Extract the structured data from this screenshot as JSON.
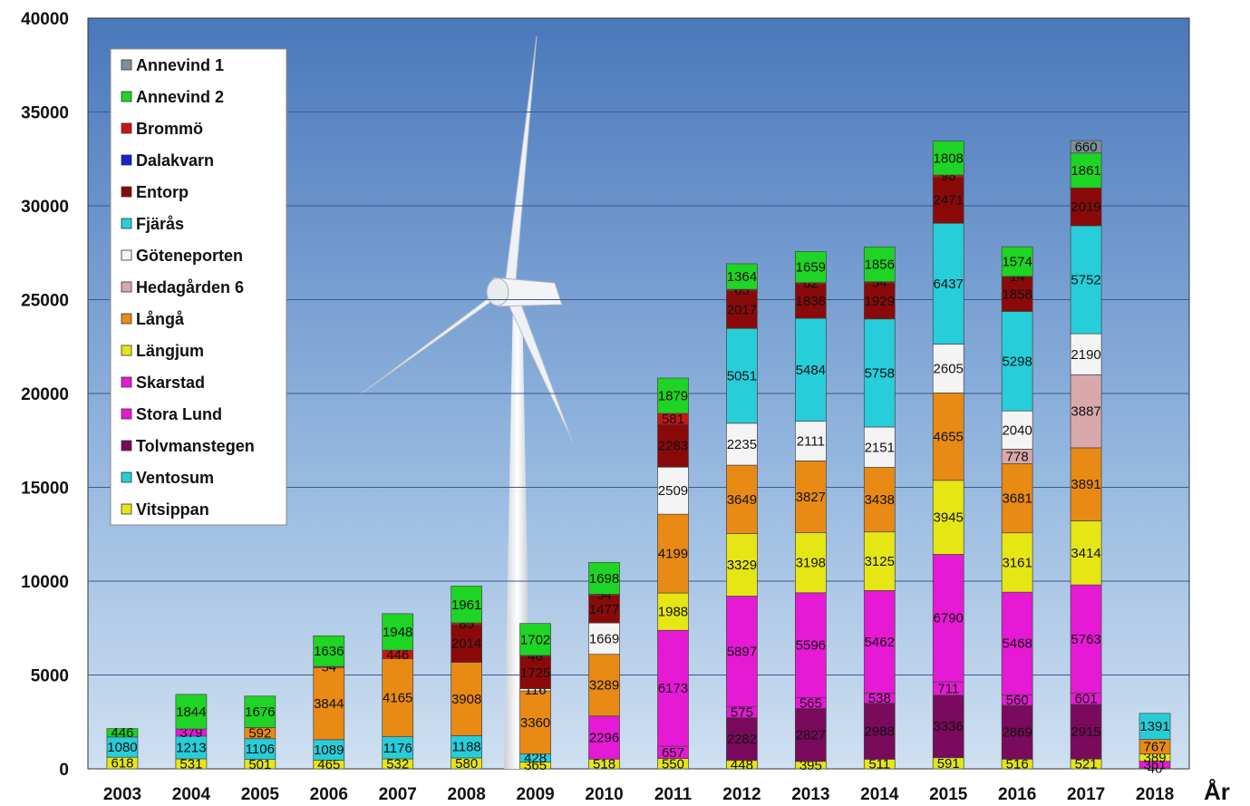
{
  "chart_data": {
    "type": "bar",
    "stacked": true,
    "xlabel": "År",
    "ylim": [
      0,
      40000
    ],
    "yticks": [
      0,
      5000,
      10000,
      15000,
      20000,
      25000,
      30000,
      35000,
      40000
    ],
    "grid": true,
    "legend_position": "top-left",
    "categories": [
      "2003",
      "2004",
      "2005",
      "2006",
      "2007",
      "2008",
      "2009",
      "2010",
      "2011",
      "2012",
      "2013",
      "2014",
      "2015",
      "2016",
      "2017",
      "2018"
    ],
    "series": [
      {
        "name": "Vitsippan",
        "color": "#e6e614",
        "values": [
          618,
          531,
          501,
          465,
          532,
          580,
          365,
          518,
          550,
          448,
          395,
          511,
          591,
          516,
          521,
          46
        ]
      },
      {
        "name": "Ventosum",
        "color": "#27cdd9",
        "values": [
          1080,
          1213,
          1106,
          1089,
          1176,
          1188,
          428,
          0,
          0,
          0,
          0,
          0,
          0,
          0,
          0,
          0
        ]
      },
      {
        "name": "Tolvmanstegen",
        "color": "#7a0a5c",
        "values": [
          0,
          0,
          0,
          0,
          0,
          0,
          0,
          0,
          0,
          2282,
          2827,
          2988,
          3336,
          2869,
          2915,
          0
        ]
      },
      {
        "name": "Stora Lund",
        "color": "#e619d4",
        "values": [
          0,
          379,
          0,
          0,
          0,
          0,
          0,
          0,
          657,
          575,
          565,
          538,
          711,
          560,
          601,
          0
        ]
      },
      {
        "name": "Skarstad",
        "color": "#e619d4",
        "values": [
          0,
          0,
          0,
          0,
          0,
          0,
          0,
          2296,
          6173,
          5897,
          5596,
          5462,
          6790,
          5468,
          5763,
          361
        ]
      },
      {
        "name": "Längjum",
        "color": "#e6e614",
        "values": [
          0,
          0,
          0,
          0,
          0,
          0,
          0,
          0,
          1988,
          3329,
          3198,
          3125,
          3945,
          3161,
          3414,
          389
        ]
      },
      {
        "name": "Långå",
        "color": "#e88a14",
        "values": [
          0,
          0,
          592,
          3844,
          4165,
          3908,
          3360,
          3289,
          4199,
          3649,
          3827,
          3438,
          4655,
          3681,
          3891,
          767
        ]
      },
      {
        "name": "Hedagården 6",
        "color": "#d9a8ab",
        "values": [
          0,
          0,
          0,
          0,
          0,
          0,
          0,
          0,
          0,
          0,
          0,
          0,
          0,
          778,
          3887,
          0
        ]
      },
      {
        "name": "Göteneporten",
        "color": "#f4f4f4",
        "values": [
          0,
          0,
          0,
          0,
          0,
          0,
          116,
          1669,
          2509,
          2235,
          2111,
          2151,
          2605,
          2040,
          2190,
          0
        ]
      },
      {
        "name": "Fjärås",
        "color": "#27cdd9",
        "values": [
          0,
          0,
          0,
          0,
          0,
          0,
          0,
          0,
          0,
          5051,
          5484,
          5758,
          6437,
          5298,
          5752,
          1391
        ]
      },
      {
        "name": "Entorp",
        "color": "#8a0a0a",
        "values": [
          0,
          0,
          0,
          0,
          0,
          2014,
          1725,
          1477,
          2283,
          2017,
          1838,
          1929,
          2471,
          1858,
          2019,
          0
        ]
      },
      {
        "name": "Dalakvarn",
        "color": "#1424cc",
        "values": [
          0,
          0,
          0,
          0,
          0,
          0,
          0,
          0,
          0,
          0,
          0,
          0,
          0,
          0,
          0,
          0
        ]
      },
      {
        "name": "Brommö",
        "color": "#cc1414",
        "values": [
          0,
          0,
          0,
          54,
          446,
          85,
          48,
          54,
          581,
          65,
          62,
          54,
          98,
          14,
          0,
          0
        ]
      },
      {
        "name": "Annevind 2",
        "color": "#1ed424",
        "values": [
          446,
          1844,
          1676,
          1636,
          1948,
          1961,
          1702,
          1698,
          1879,
          1364,
          1659,
          1856,
          1808,
          1574,
          1861,
          0
        ]
      },
      {
        "name": "Annevind 1",
        "color": "#7f8f99",
        "values": [
          0,
          0,
          0,
          0,
          0,
          0,
          0,
          0,
          0,
          0,
          0,
          0,
          0,
          0,
          660,
          0
        ]
      }
    ]
  },
  "legend": [
    "Annevind 1",
    "Annevind 2",
    "Brommö",
    "Dalakvarn",
    "Entorp",
    "Fjärås",
    "Göteneporten",
    "Hedagården 6",
    "Långå",
    "Längjum",
    "Skarstad",
    "Stora Lund",
    "Tolvmanstegen",
    "Ventosum",
    "Vitsippan"
  ],
  "colors": {
    "plot_bg_top": "#4f7fbf",
    "plot_bg_bottom": "#c8dcf0",
    "grid": "#3a5a8a"
  }
}
